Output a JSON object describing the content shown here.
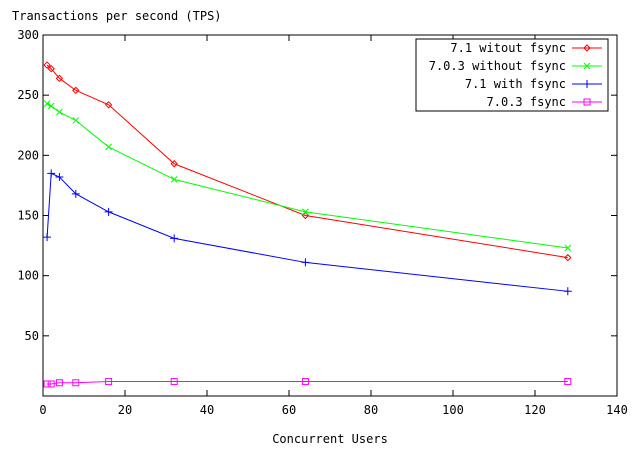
{
  "chart_data": {
    "type": "line",
    "title": "",
    "ylabel": "Transactions per second (TPS)",
    "xlabel": "Concurrent Users",
    "xlim": [
      0,
      140
    ],
    "ylim": [
      0,
      300
    ],
    "xticks": [
      0,
      20,
      40,
      60,
      80,
      100,
      120,
      140
    ],
    "yticks": [
      50,
      100,
      150,
      200,
      250,
      300
    ],
    "grid": false,
    "legend_position": "top-right",
    "x": [
      1,
      2,
      4,
      8,
      16,
      32,
      64,
      128
    ],
    "series": [
      {
        "name": "7.1 witout fsync",
        "color": "#ff0000",
        "marker": "diamond",
        "values": [
          275,
          272,
          264,
          254,
          242,
          193,
          150,
          115
        ]
      },
      {
        "name": "7.0.3 without fsync",
        "color": "#00ff00",
        "marker": "x",
        "values": [
          243,
          241,
          236,
          229,
          207,
          180,
          153,
          123
        ]
      },
      {
        "name": "7.1 with fsync",
        "color": "#0000ff",
        "marker": "plus",
        "values": [
          132,
          185,
          182,
          168,
          153,
          131,
          111,
          87
        ]
      },
      {
        "name": "7.0.3 fsync",
        "color": "#ff00ff",
        "marker": "square",
        "values": [
          10,
          10,
          11,
          11,
          12,
          12,
          12,
          12
        ]
      }
    ]
  }
}
